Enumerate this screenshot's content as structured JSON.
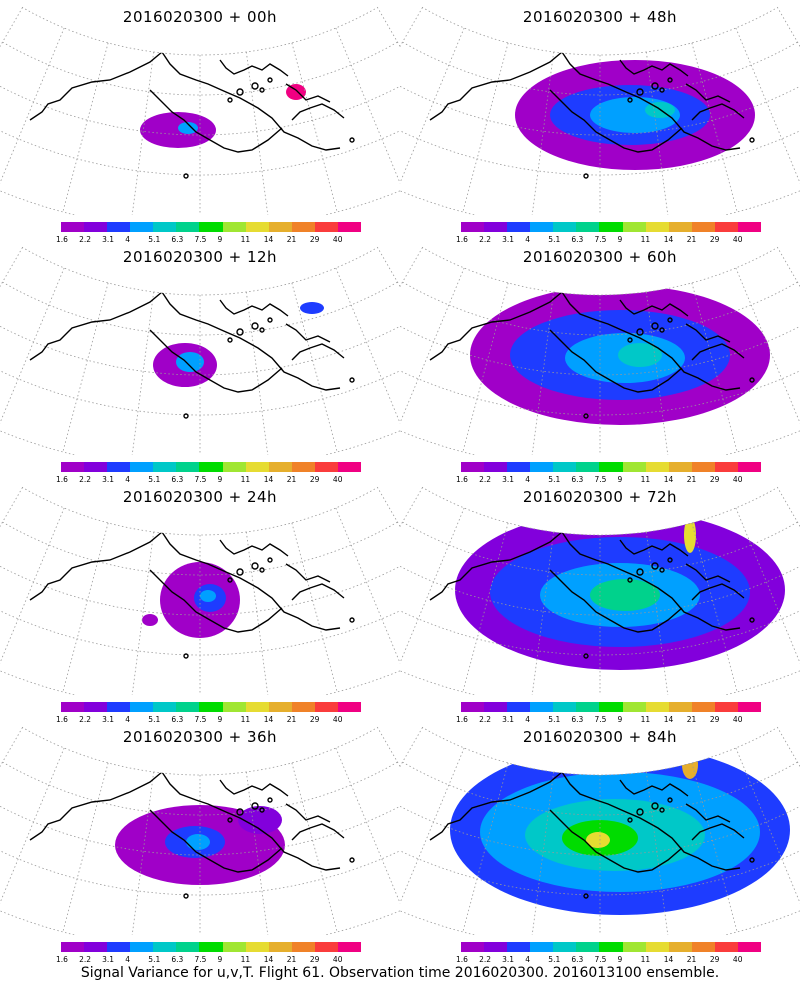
{
  "panels": [
    {
      "title": "2016020300 + 00h",
      "level": 0
    },
    {
      "title": "2016020300 + 48h",
      "level": 4
    },
    {
      "title": "2016020300 + 12h",
      "level": 1
    },
    {
      "title": "2016020300 + 60h",
      "level": 5
    },
    {
      "title": "2016020300 + 24h",
      "level": 2
    },
    {
      "title": "2016020300 + 72h",
      "level": 6
    },
    {
      "title": "2016020300 + 36h",
      "level": 3
    },
    {
      "title": "2016020300 + 84h",
      "level": 7
    }
  ],
  "colorbar": {
    "colors": [
      "#a000c8",
      "#8200dc",
      "#1e3cff",
      "#00a0ff",
      "#00c8c8",
      "#00d28c",
      "#00dc00",
      "#a0e632",
      "#e6dc32",
      "#e6af2d",
      "#f08228",
      "#fa3c3c",
      "#f00082"
    ],
    "labels": [
      "1.6",
      "2.2",
      "3.1",
      "4",
      "5.1",
      "6.3",
      "7.5",
      "9",
      "11",
      "14",
      "21",
      "29",
      "40"
    ]
  },
  "footer": "Signal Variance for u,v,T. Flight 61. Observation time 2016020300. 2016013100 ensemble."
}
